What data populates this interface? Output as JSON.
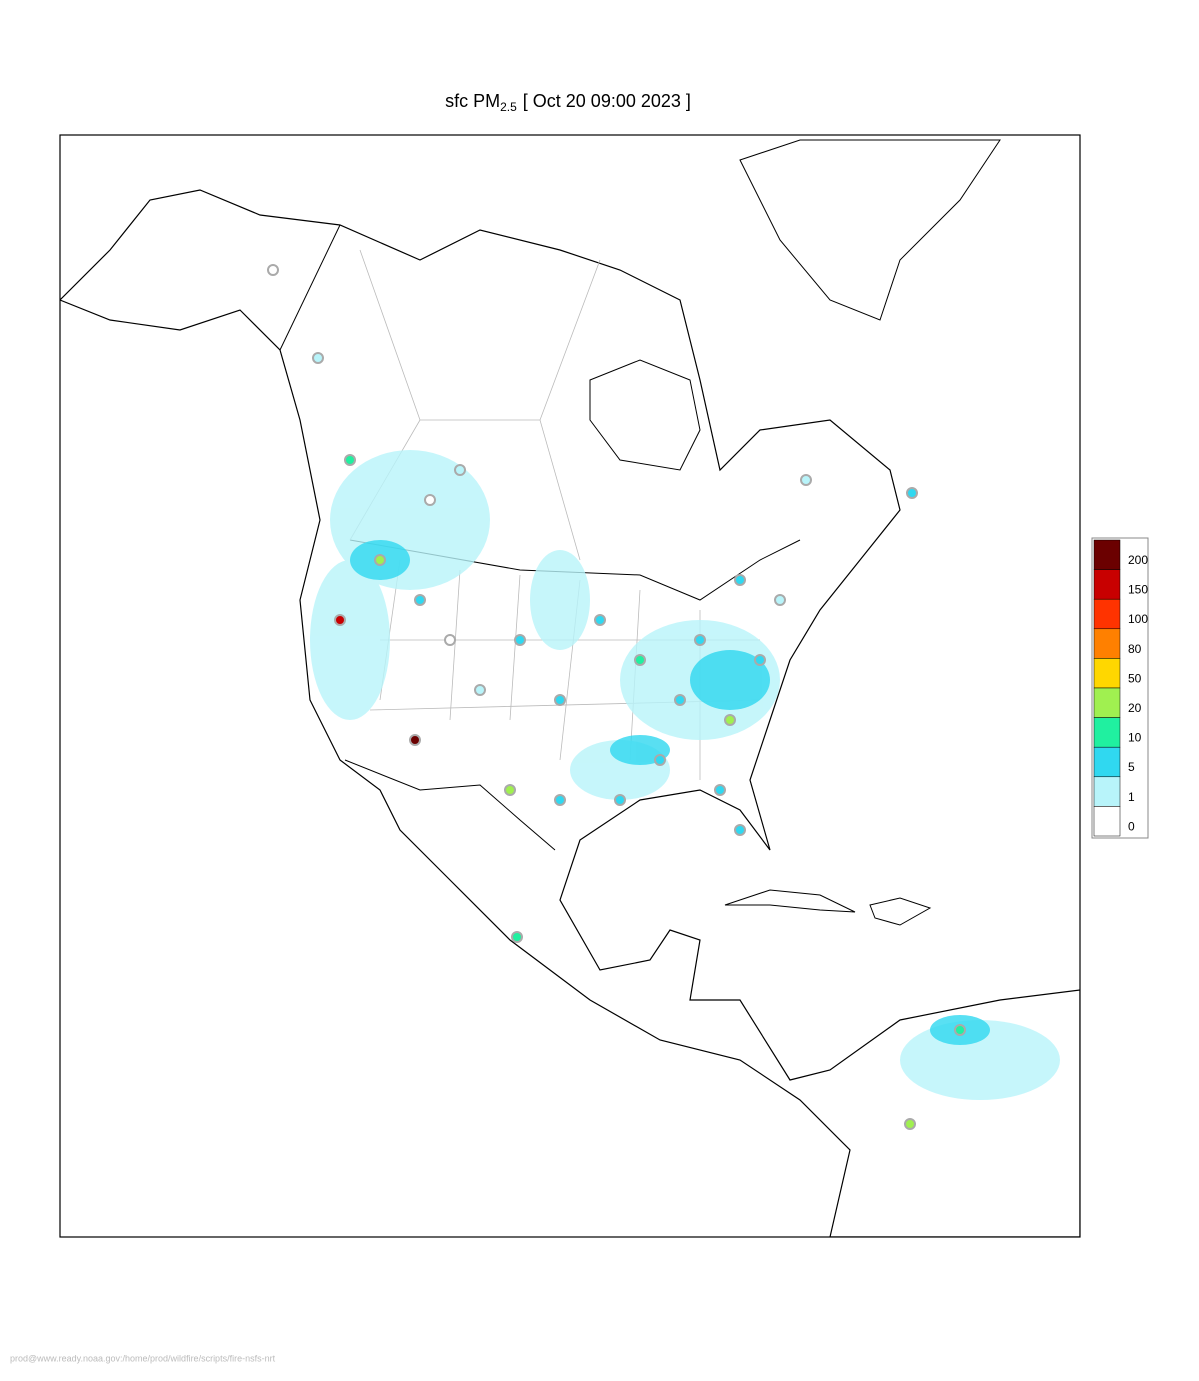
{
  "title": {
    "prefix": "sfc PM",
    "subscript": "2.5",
    "suffix": "[ Oct 20 09:00 2023 ]"
  },
  "legend": {
    "levels": [
      {
        "label": "200",
        "color": "#6b0000"
      },
      {
        "label": "150",
        "color": "#c80000"
      },
      {
        "label": "100",
        "color": "#ff3300"
      },
      {
        "label": "80",
        "color": "#ff8000"
      },
      {
        "label": "50",
        "color": "#ffd700"
      },
      {
        "label": "20",
        "color": "#a0f050"
      },
      {
        "label": "10",
        "color": "#20f0a0"
      },
      {
        "label": "5",
        "color": "#30d8f0"
      },
      {
        "label": "1",
        "color": "#b8f4fa"
      },
      {
        "label": "0",
        "color": "#ffffff"
      }
    ]
  },
  "footer": "prod@www.ready.noaa.gov:/home/prod/wildfire/scripts/fire-nsfs-nrt"
}
